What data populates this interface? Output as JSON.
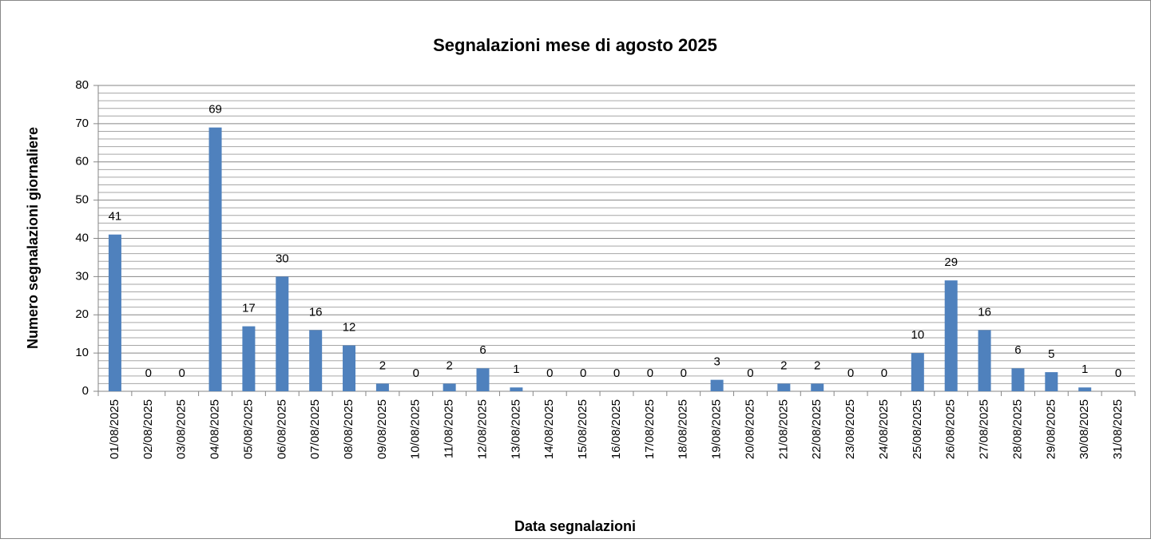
{
  "chart_data": {
    "type": "bar",
    "title": "Segnalazioni mese di agosto 2025",
    "x_label": "Data segnalazioni",
    "y_label": "Numero segnalazioni giornaliere",
    "categories": [
      "01/08/2025",
      "02/08/2025",
      "03/08/2025",
      "04/08/2025",
      "05/08/2025",
      "06/08/2025",
      "07/08/2025",
      "08/08/2025",
      "09/08/2025",
      "10/08/2025",
      "11/08/2025",
      "12/08/2025",
      "13/08/2025",
      "14/08/2025",
      "15/08/2025",
      "16/08/2025",
      "17/08/2025",
      "18/08/2025",
      "19/08/2025",
      "20/08/2025",
      "21/08/2025",
      "22/08/2025",
      "23/08/2025",
      "24/08/2025",
      "25/08/2025",
      "26/08/2025",
      "27/08/2025",
      "28/08/2025",
      "29/08/2025",
      "30/08/2025",
      "31/08/2025"
    ],
    "values": [
      41,
      0,
      0,
      69,
      17,
      30,
      16,
      12,
      2,
      0,
      2,
      6,
      1,
      0,
      0,
      0,
      0,
      0,
      3,
      0,
      2,
      2,
      0,
      0,
      10,
      29,
      16,
      6,
      5,
      1,
      0
    ],
    "color": "#4f81bd",
    "ylim": [
      0,
      80
    ],
    "yticks": [
      0,
      10,
      20,
      30,
      40,
      50,
      60,
      70,
      80
    ],
    "yminorticks": [
      2,
      4,
      6,
      8,
      12,
      14,
      16,
      18,
      22,
      24,
      26,
      28,
      32,
      34,
      36,
      38,
      42,
      44,
      46,
      48,
      52,
      54,
      56,
      58,
      62,
      64,
      66,
      68,
      72,
      74,
      76,
      78
    ],
    "grid": true
  }
}
